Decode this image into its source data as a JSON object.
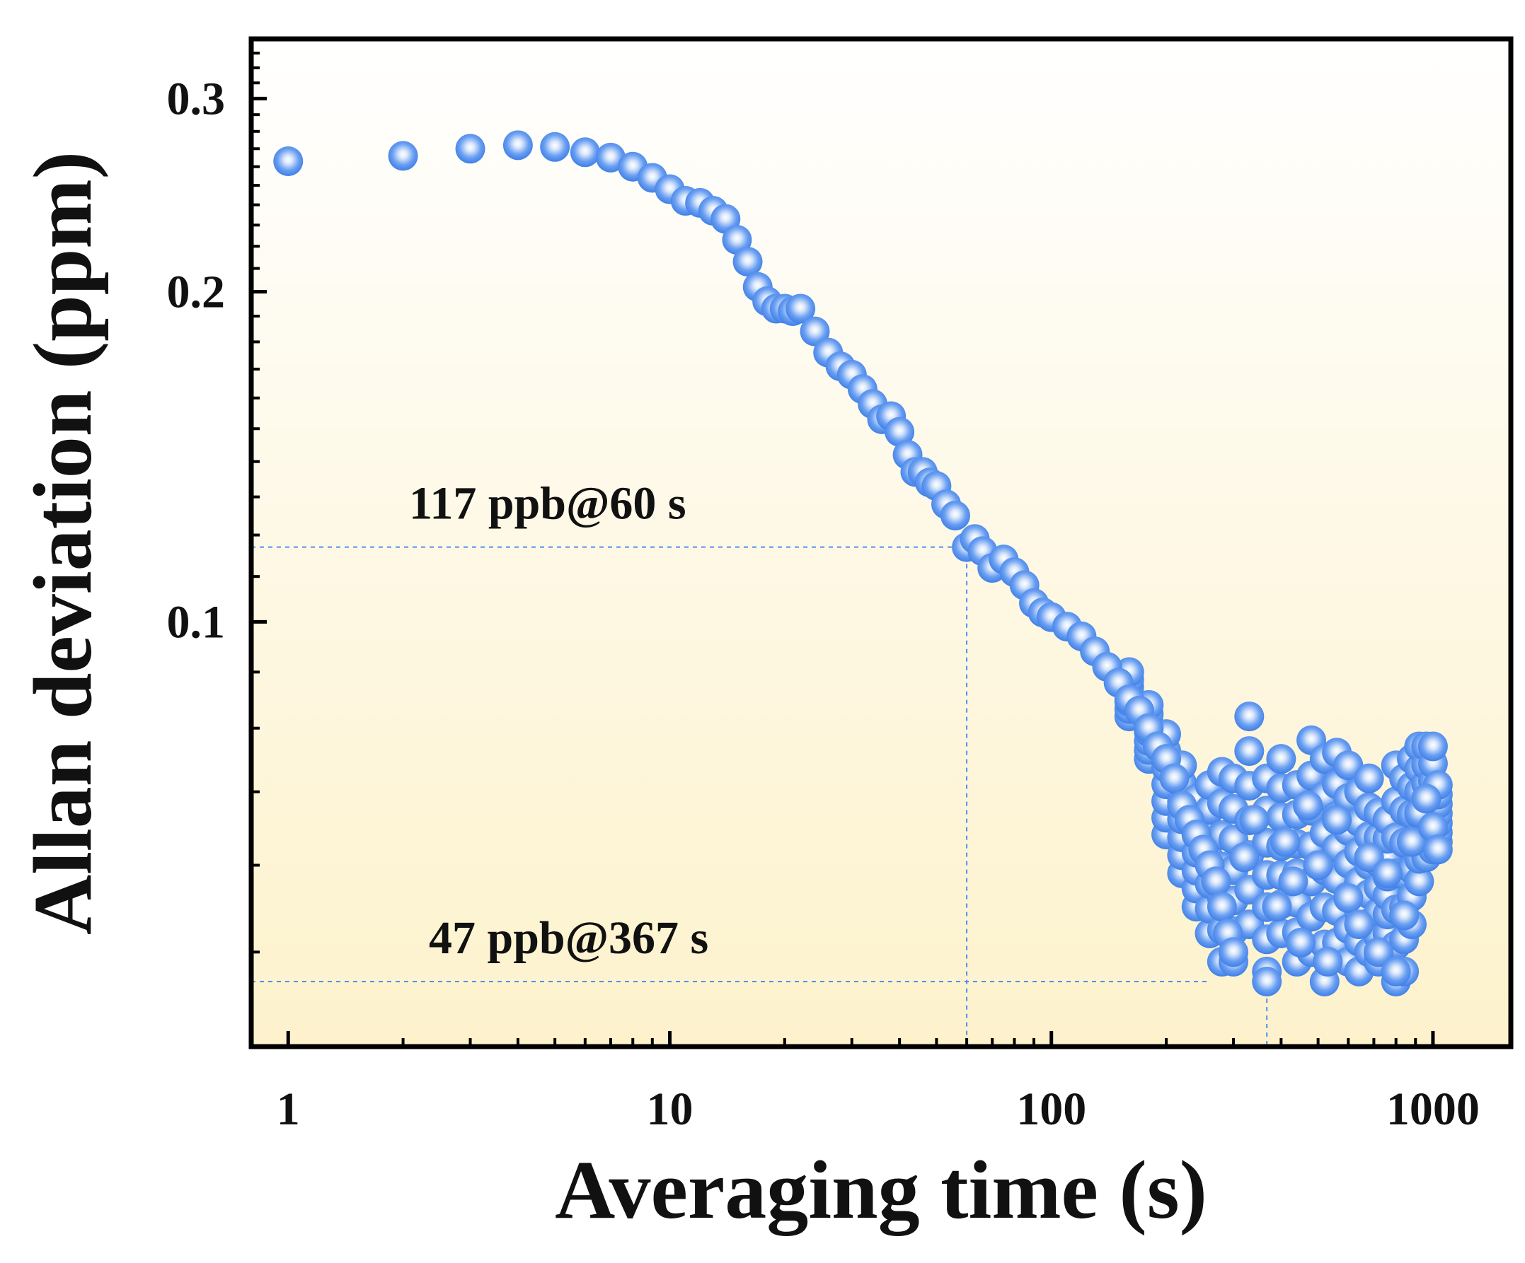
{
  "chart_data": {
    "type": "scatter",
    "title": "",
    "xlabel": "Averaging time (s)",
    "ylabel": "Allan deviation (ppm)",
    "xscale": "log",
    "yscale": "log",
    "xlim": [
      0.8,
      1600
    ],
    "ylim": [
      0.041,
      0.34
    ],
    "xticks": [
      1,
      10,
      100,
      1000
    ],
    "xtick_labels": [
      "1",
      "10",
      "100",
      "1000"
    ],
    "yticks": [
      0.1,
      0.2,
      0.3
    ],
    "ytick_labels": [
      "0.1",
      "0.2",
      "0.3"
    ],
    "marker_color": "#4f8ff0",
    "background_gradient": [
      "#ffffff",
      "#fdf2cc"
    ],
    "annotations": [
      {
        "text": "117 ppb@60 s",
        "x": 60,
        "y": 0.117
      },
      {
        "text": "47 ppb@367 s",
        "x": 367,
        "y": 0.047
      }
    ],
    "series": [
      {
        "name": "Allan deviation",
        "points": [
          [
            1,
            0.263
          ],
          [
            2,
            0.266
          ],
          [
            3,
            0.27
          ],
          [
            4,
            0.272
          ],
          [
            5,
            0.271
          ],
          [
            6,
            0.268
          ],
          [
            7,
            0.265
          ],
          [
            8,
            0.26
          ],
          [
            9,
            0.254
          ],
          [
            10,
            0.248
          ],
          [
            11,
            0.242
          ],
          [
            12,
            0.241
          ],
          [
            13,
            0.237
          ],
          [
            14,
            0.233
          ],
          [
            15,
            0.223
          ],
          [
            16,
            0.213
          ],
          [
            17,
            0.202
          ],
          [
            18,
            0.196
          ],
          [
            19,
            0.193
          ],
          [
            20,
            0.193
          ],
          [
            21,
            0.192
          ],
          [
            22,
            0.193
          ],
          [
            24,
            0.184
          ],
          [
            26,
            0.176
          ],
          [
            28,
            0.171
          ],
          [
            30,
            0.168
          ],
          [
            32,
            0.163
          ],
          [
            34,
            0.158
          ],
          [
            36,
            0.153
          ],
          [
            38,
            0.154
          ],
          [
            40,
            0.149
          ],
          [
            42,
            0.142
          ],
          [
            44,
            0.137
          ],
          [
            46,
            0.137
          ],
          [
            48,
            0.134
          ],
          [
            50,
            0.133
          ],
          [
            53,
            0.128
          ],
          [
            56,
            0.125
          ],
          [
            60,
            0.117
          ],
          [
            63,
            0.119
          ],
          [
            66,
            0.116
          ],
          [
            70,
            0.112
          ],
          [
            75,
            0.114
          ],
          [
            80,
            0.111
          ],
          [
            85,
            0.108
          ],
          [
            90,
            0.104
          ],
          [
            95,
            0.102
          ],
          [
            100,
            0.101
          ],
          [
            110,
            0.099
          ],
          [
            120,
            0.097
          ],
          [
            130,
            0.094
          ],
          [
            140,
            0.091
          ],
          [
            150,
            0.088
          ],
          [
            160,
            0.085
          ],
          [
            170,
            0.083
          ],
          [
            180,
            0.08
          ],
          [
            190,
            0.077
          ],
          [
            200,
            0.075
          ],
          [
            210,
            0.072
          ],
          [
            220,
            0.068
          ],
          [
            230,
            0.066
          ],
          [
            240,
            0.064
          ],
          [
            250,
            0.062
          ],
          [
            260,
            0.06
          ],
          [
            270,
            0.058
          ],
          [
            280,
            0.055
          ],
          [
            290,
            0.052
          ],
          [
            300,
            0.05
          ],
          [
            320,
            0.061
          ],
          [
            340,
            0.066
          ],
          [
            367,
            0.047
          ],
          [
            390,
            0.055
          ],
          [
            410,
            0.063
          ],
          [
            430,
            0.058
          ],
          [
            450,
            0.051
          ],
          [
            470,
            0.068
          ],
          [
            500,
            0.06
          ],
          [
            530,
            0.049
          ],
          [
            560,
            0.066
          ],
          [
            600,
            0.056
          ],
          [
            640,
            0.053
          ],
          [
            680,
            0.061
          ],
          [
            720,
            0.05
          ],
          [
            760,
            0.059
          ],
          [
            800,
            0.048
          ],
          [
            840,
            0.054
          ],
          [
            880,
            0.063
          ],
          [
            920,
            0.067
          ],
          [
            960,
            0.069
          ],
          [
            1000,
            0.065
          ],
          [
            1030,
            0.062
          ]
        ],
        "scatter_min": [
          [
            160,
            0.082
          ],
          [
            180,
            0.075
          ],
          [
            200,
            0.064
          ],
          [
            220,
            0.059
          ],
          [
            240,
            0.055
          ],
          [
            260,
            0.052
          ],
          [
            280,
            0.049
          ],
          [
            300,
            0.049
          ],
          [
            330,
            0.053
          ],
          [
            367,
            0.048
          ],
          [
            400,
            0.052
          ],
          [
            440,
            0.049
          ],
          [
            480,
            0.05
          ],
          [
            520,
            0.047
          ],
          [
            560,
            0.051
          ],
          [
            600,
            0.049
          ],
          [
            640,
            0.048
          ],
          [
            680,
            0.05
          ],
          [
            720,
            0.049
          ],
          [
            760,
            0.052
          ],
          [
            800,
            0.047
          ],
          [
            840,
            0.048
          ],
          [
            880,
            0.053
          ],
          [
            920,
            0.058
          ],
          [
            960,
            0.061
          ],
          [
            1000,
            0.062
          ],
          [
            1030,
            0.063
          ]
        ],
        "scatter_max": [
          [
            160,
            0.09
          ],
          [
            180,
            0.084
          ],
          [
            200,
            0.079
          ],
          [
            220,
            0.074
          ],
          [
            240,
            0.069
          ],
          [
            260,
            0.071
          ],
          [
            280,
            0.073
          ],
          [
            300,
            0.072
          ],
          [
            330,
            0.082
          ],
          [
            367,
            0.072
          ],
          [
            400,
            0.075
          ],
          [
            440,
            0.071
          ],
          [
            480,
            0.078
          ],
          [
            520,
            0.075
          ],
          [
            560,
            0.076
          ],
          [
            600,
            0.074
          ],
          [
            640,
            0.07
          ],
          [
            680,
            0.072
          ],
          [
            720,
            0.067
          ],
          [
            760,
            0.066
          ],
          [
            800,
            0.074
          ],
          [
            840,
            0.072
          ],
          [
            880,
            0.075
          ],
          [
            920,
            0.077
          ],
          [
            960,
            0.077
          ],
          [
            1000,
            0.077
          ],
          [
            1030,
            0.071
          ]
        ]
      }
    ]
  }
}
